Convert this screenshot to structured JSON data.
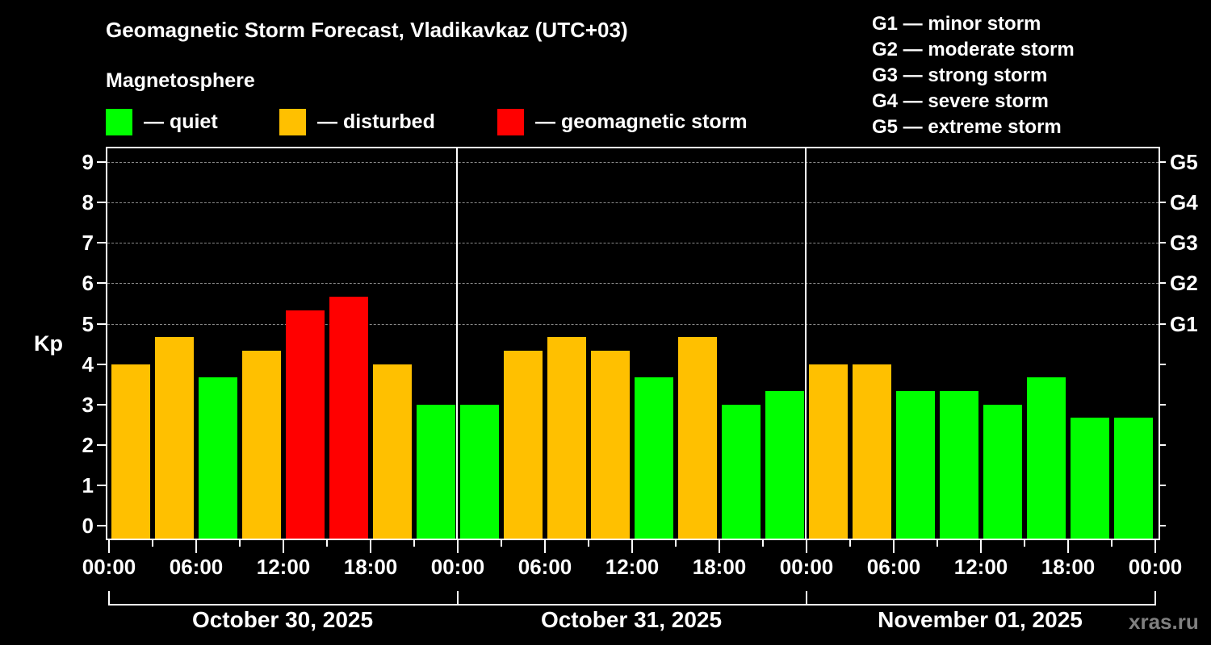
{
  "header": {
    "title": "Geomagnetic Storm Forecast, Vladikavkaz (UTC+03)",
    "subtitle": "Magnetosphere"
  },
  "legend": [
    {
      "label": "— quiet",
      "color": "#00ff00"
    },
    {
      "label": "— disturbed",
      "color": "#ffc000"
    },
    {
      "label": "— geomagnetic storm",
      "color": "#ff0000"
    }
  ],
  "g_scale_legend": [
    "G1 — minor storm",
    "G2 — moderate storm",
    "G3 — strong storm",
    "G4 — severe storm",
    "G5 — extreme storm"
  ],
  "watermark": "xras.ru",
  "chart_data": {
    "type": "bar",
    "title": "Geomagnetic Storm Forecast, Vladikavkaz (UTC+03)",
    "xlabel": "",
    "ylabel": "Kp",
    "ylim": [
      0,
      9
    ],
    "yticks": [
      "0",
      "1",
      "2",
      "3",
      "4",
      "5",
      "6",
      "7",
      "8",
      "9"
    ],
    "right_axis_labels": [
      {
        "value": 5,
        "label": "G1"
      },
      {
        "value": 6,
        "label": "G2"
      },
      {
        "value": 7,
        "label": "G3"
      },
      {
        "value": 8,
        "label": "G4"
      },
      {
        "value": 9,
        "label": "G5"
      }
    ],
    "grid": "dashed horizontal at Kp 5-9",
    "xtick_labels": [
      "00:00",
      "06:00",
      "12:00",
      "18:00",
      "00:00",
      "06:00",
      "12:00",
      "18:00",
      "00:00",
      "06:00",
      "12:00",
      "18:00",
      "00:00"
    ],
    "days": [
      "October 30, 2025",
      "October 31, 2025",
      "November 01, 2025"
    ],
    "categories": [
      "Oct30 00-03",
      "Oct30 03-06",
      "Oct30 06-09",
      "Oct30 09-12",
      "Oct30 12-15",
      "Oct30 15-18",
      "Oct30 18-21",
      "Oct30 21-24",
      "Oct31 00-03",
      "Oct31 03-06",
      "Oct31 06-09",
      "Oct31 09-12",
      "Oct31 12-15",
      "Oct31 15-18",
      "Oct31 18-21",
      "Oct31 21-24",
      "Nov01 00-03",
      "Nov01 03-06",
      "Nov01 06-09",
      "Nov01 09-12",
      "Nov01 12-15",
      "Nov01 15-18",
      "Nov01 18-21",
      "Nov01 21-24"
    ],
    "values": [
      4.0,
      4.67,
      3.67,
      4.33,
      5.33,
      5.67,
      4.0,
      3.0,
      3.0,
      4.33,
      4.67,
      4.33,
      3.67,
      4.67,
      3.0,
      3.33,
      4.0,
      4.0,
      3.33,
      3.33,
      3.0,
      3.67,
      2.67,
      2.67
    ],
    "status": [
      "disturbed",
      "disturbed",
      "quiet",
      "disturbed",
      "storm",
      "storm",
      "disturbed",
      "quiet",
      "quiet",
      "disturbed",
      "disturbed",
      "disturbed",
      "quiet",
      "disturbed",
      "quiet",
      "quiet",
      "disturbed",
      "disturbed",
      "quiet",
      "quiet",
      "quiet",
      "quiet",
      "quiet",
      "quiet"
    ],
    "colors": {
      "quiet": "#00ff00",
      "disturbed": "#ffc000",
      "storm": "#ff0000"
    }
  }
}
